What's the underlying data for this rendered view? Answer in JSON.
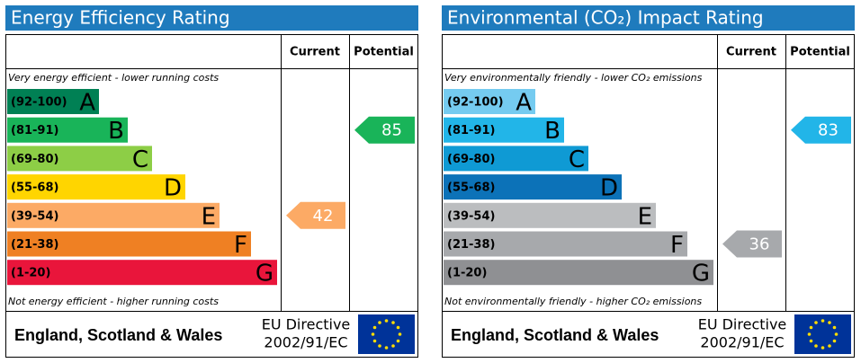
{
  "panels": [
    {
      "title": "Energy Efficiency Rating",
      "columns": [
        "Current",
        "Potential"
      ],
      "top_note": "Very energy efficient - lower running costs",
      "bottom_note": "Not energy efficient - higher running costs",
      "bands": [
        {
          "range": "(92-100)",
          "letter": "A",
          "color": "#008054"
        },
        {
          "range": "(81-91)",
          "letter": "B",
          "color": "#19b459"
        },
        {
          "range": "(69-80)",
          "letter": "C",
          "color": "#8dce46"
        },
        {
          "range": "(55-68)",
          "letter": "D",
          "color": "#ffd500"
        },
        {
          "range": "(39-54)",
          "letter": "E",
          "color": "#fcaa65"
        },
        {
          "range": "(21-38)",
          "letter": "F",
          "color": "#ef8023"
        },
        {
          "range": "(1-20)",
          "letter": "G",
          "color": "#e9153b"
        }
      ],
      "current": 42,
      "potential": 85,
      "region": "England, Scotland & Wales",
      "directive": [
        "EU Directive",
        "2002/91/EC"
      ]
    },
    {
      "title": "Environmental (CO₂) Impact Rating",
      "columns": [
        "Current",
        "Potential"
      ],
      "top_note": "Very environmentally friendly - lower CO₂ emissions",
      "bottom_note": "Not environmentally friendly - higher CO₂ emissions",
      "bands": [
        {
          "range": "(92-100)",
          "letter": "A",
          "color": "#75cbf0"
        },
        {
          "range": "(81-91)",
          "letter": "B",
          "color": "#22b5e8"
        },
        {
          "range": "(69-80)",
          "letter": "C",
          "color": "#0f9ad4"
        },
        {
          "range": "(55-68)",
          "letter": "D",
          "color": "#0c72b8"
        },
        {
          "range": "(39-54)",
          "letter": "E",
          "color": "#bbbdbf"
        },
        {
          "range": "(21-38)",
          "letter": "F",
          "color": "#a7a9ac"
        },
        {
          "range": "(1-20)",
          "letter": "G",
          "color": "#8f9093"
        }
      ],
      "current": 36,
      "potential": 83,
      "region": "England, Scotland & Wales",
      "directive": [
        "EU Directive",
        "2002/91/EC"
      ]
    }
  ]
}
